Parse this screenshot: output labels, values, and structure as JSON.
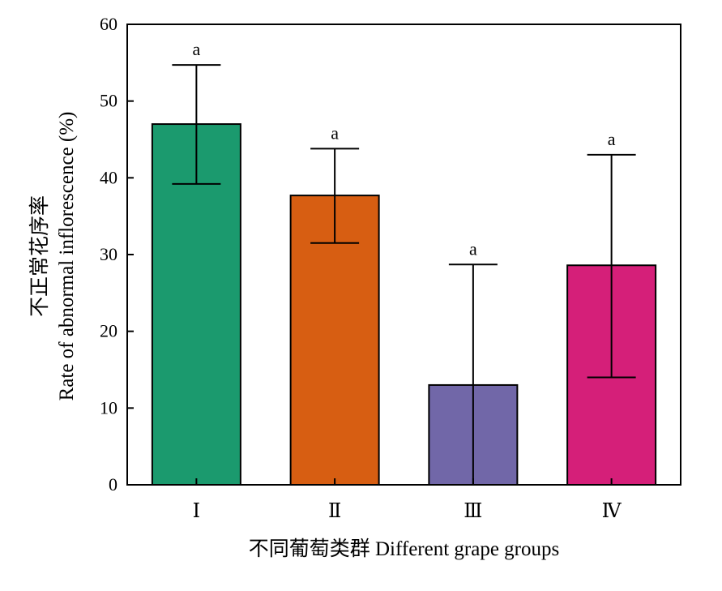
{
  "chart_data": {
    "type": "bar",
    "categories": [
      "Ⅰ",
      "Ⅱ",
      "Ⅲ",
      "Ⅳ"
    ],
    "values": [
      47,
      37.7,
      13,
      28.6
    ],
    "error_low": [
      39.2,
      31.5,
      0,
      14
    ],
    "error_high": [
      54.7,
      43.8,
      28.7,
      43
    ],
    "significance": [
      "a",
      "a",
      "a",
      "a"
    ],
    "colors": [
      "#1b9a6e",
      "#d75e12",
      "#7167a8",
      "#d51f79"
    ],
    "xlabel": "不同葡萄类群 Different grape groups",
    "ylabel_cn": "不正常花序率",
    "ylabel_en": "Rate of abnormal inflorescence (%)",
    "ylim": [
      0,
      60
    ],
    "yticks": [
      0,
      10,
      20,
      30,
      40,
      50,
      60
    ],
    "grid": false,
    "legend": "none"
  }
}
